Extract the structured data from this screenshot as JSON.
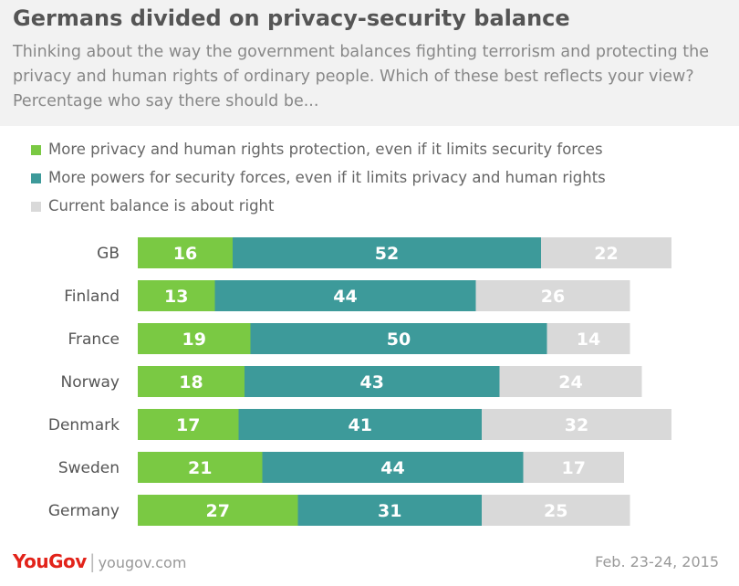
{
  "title": "Germans divided on privacy-security balance",
  "subtitle": "Thinking about the way the government balances fighting terrorism and protecting the privacy and human rights of ordinary people. Which of these best reflects your view? Percentage who say there should be...",
  "colors": {
    "privacy": "#7ac943",
    "security": "#3d9a9a",
    "balance": "#d9d9d9"
  },
  "chart_data": {
    "type": "bar",
    "orientation": "horizontal",
    "stacked": true,
    "categories": [
      "GB",
      "Finland",
      "France",
      "Norway",
      "Denmark",
      "Sweden",
      "Germany"
    ],
    "series": [
      {
        "name": "More privacy and human rights protection, even if it limits security forces",
        "color": "#7ac943",
        "values": [
          16,
          13,
          19,
          18,
          17,
          21,
          27
        ]
      },
      {
        "name": "More powers for security forces, even if it limits privacy and human rights",
        "color": "#3d9a9a",
        "values": [
          52,
          44,
          50,
          43,
          41,
          44,
          31
        ]
      },
      {
        "name": "Current balance is about right",
        "color": "#d9d9d9",
        "values": [
          22,
          26,
          14,
          24,
          32,
          17,
          25
        ]
      }
    ],
    "legend_position": "top-left",
    "data_labels": true,
    "grid": false
  },
  "footer": {
    "logo": "YouGov",
    "separator": "|",
    "site": "yougov.com",
    "date": "Feb. 23-24, 2015"
  }
}
